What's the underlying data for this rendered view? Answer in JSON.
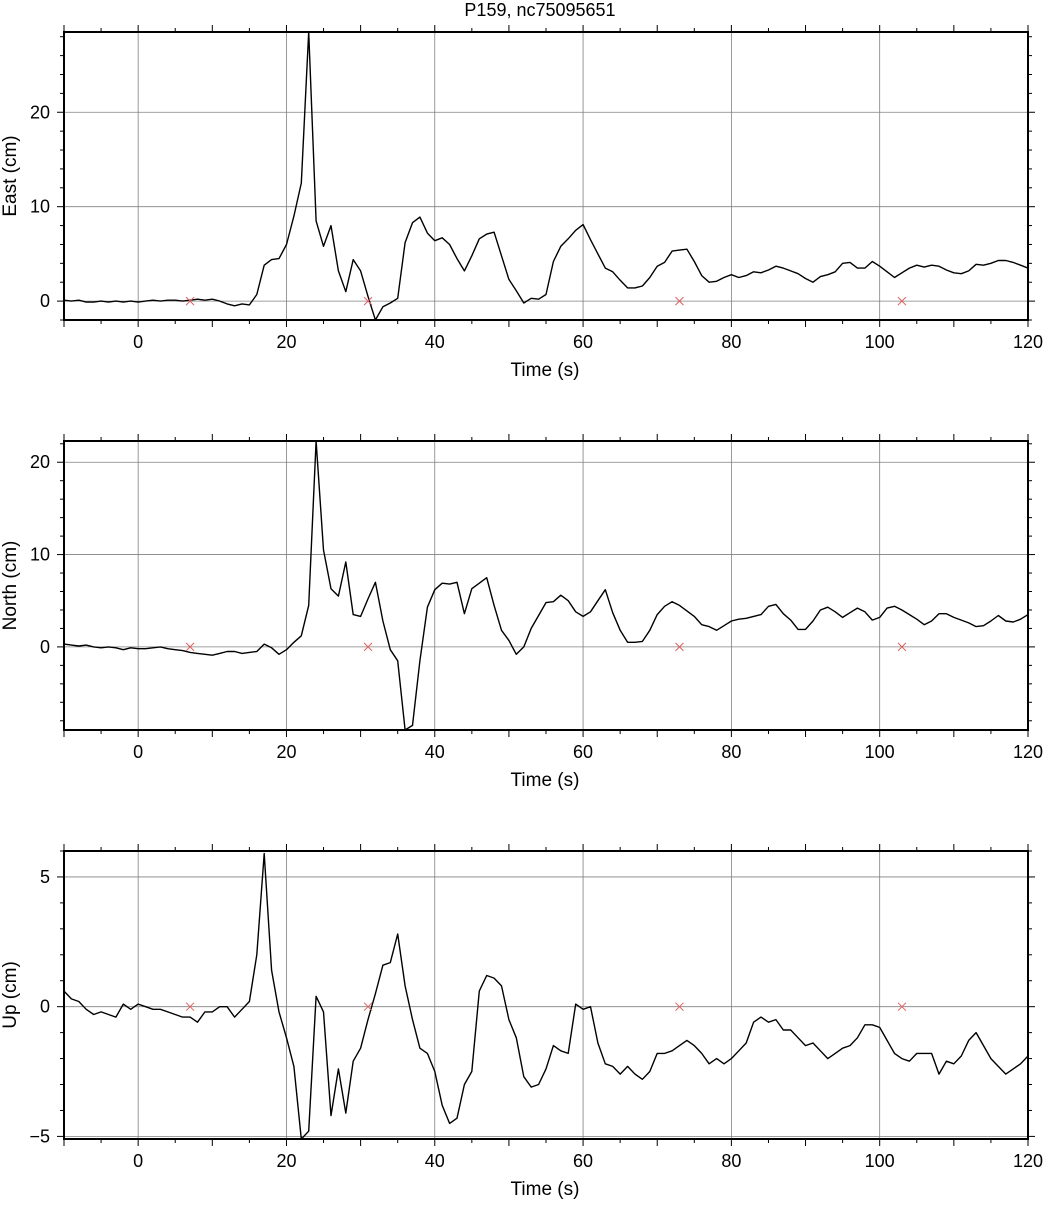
{
  "chart_data": {
    "title": "P159, nc75095651",
    "type": "line",
    "colors": {
      "trace": "#000000",
      "marker": "#e06060",
      "grid": "#808080"
    },
    "panels": [
      {
        "id": "east",
        "ylabel": "East (cm)",
        "xlabel": "Time (s)",
        "xlim": [
          -10,
          120
        ],
        "ylim": [
          -2,
          28.5
        ],
        "xticks": [
          0,
          20,
          40,
          60,
          80,
          100,
          120
        ],
        "xtick_labels": [
          "0",
          "20",
          "40",
          "60",
          "80",
          "100",
          "120"
        ],
        "yticks": [
          0,
          10,
          20
        ],
        "ytick_labels": [
          "0",
          "10",
          "20"
        ],
        "x": [
          -10,
          -9,
          -8,
          -7,
          -6,
          -5,
          -4,
          -3,
          -2,
          -1,
          0,
          1,
          2,
          3,
          4,
          5,
          6,
          7,
          8,
          9,
          10,
          11,
          12,
          13,
          14,
          15,
          16,
          17,
          18,
          19,
          20,
          21,
          22,
          23,
          24,
          25,
          26,
          27,
          28,
          29,
          30,
          31,
          32,
          33,
          34,
          35,
          36,
          37,
          38,
          39,
          40,
          41,
          42,
          43,
          44,
          45,
          46,
          47,
          48,
          49,
          50,
          51,
          52,
          53,
          54,
          55,
          56,
          57,
          58,
          59,
          60,
          61,
          62,
          63,
          64,
          65,
          66,
          67,
          68,
          69,
          70,
          71,
          72,
          73,
          74,
          75,
          76,
          77,
          78,
          79,
          80,
          81,
          82,
          83,
          84,
          85,
          86,
          87,
          88,
          89,
          90,
          91,
          92,
          93,
          94,
          95,
          96,
          97,
          98,
          99,
          100,
          101,
          102,
          103,
          104,
          105,
          106,
          107,
          108,
          109,
          110,
          111,
          112,
          113,
          114,
          115,
          116,
          117,
          118,
          119,
          120
        ],
        "y": [
          0.1,
          0,
          0.1,
          -0.1,
          -0.1,
          0,
          -0.1,
          0,
          -0.1,
          0,
          -0.1,
          0,
          0.1,
          0,
          0.1,
          0.1,
          0,
          0.1,
          0.2,
          0.1,
          0.2,
          0,
          -0.3,
          -0.5,
          -0.3,
          -0.4,
          0.7,
          3.8,
          4.4,
          4.5,
          6,
          9,
          12.5,
          28.5,
          8.5,
          5.8,
          8,
          3.2,
          1,
          4.4,
          3.2,
          0.5,
          -2,
          -0.6,
          -0.2,
          0.3,
          6.2,
          8.3,
          8.9,
          7.2,
          6.4,
          6.7,
          6,
          4.5,
          3.2,
          4.8,
          6.6,
          7.1,
          7.3,
          4.8,
          2.3,
          1.1,
          -0.2,
          0.3,
          0.2,
          0.7,
          4.2,
          5.8,
          6.6,
          7.5,
          8.1,
          6.5,
          5,
          3.5,
          3.1,
          2.2,
          1.4,
          1.4,
          1.6,
          2.5,
          3.7,
          4.1,
          5.3,
          5.4,
          5.5,
          4.2,
          2.7,
          2,
          2.1,
          2.5,
          2.8,
          2.5,
          2.7,
          3.1,
          3,
          3.3,
          3.7,
          3.5,
          3.2,
          2.9,
          2.4,
          2,
          2.6,
          2.8,
          3.1,
          4,
          4.1,
          3.5,
          3.5,
          4.2,
          3.7,
          3.1,
          2.5,
          3,
          3.5,
          3.8,
          3.6,
          3.8,
          3.7,
          3.3,
          3,
          2.9,
          3.2,
          3.9,
          3.8,
          4,
          4.3,
          4.3,
          4.1,
          3.8,
          3.5
        ],
        "markers_x": [
          7,
          31,
          73,
          103
        ],
        "markers_y": [
          0,
          0,
          0,
          0
        ]
      },
      {
        "id": "north",
        "ylabel": "North (cm)",
        "xlabel": "Time (s)",
        "xlim": [
          -10,
          120
        ],
        "ylim": [
          -9,
          22.3
        ],
        "xticks": [
          0,
          20,
          40,
          60,
          80,
          100,
          120
        ],
        "xtick_labels": [
          "0",
          "20",
          "40",
          "60",
          "80",
          "100",
          "120"
        ],
        "yticks": [
          0,
          10,
          20
        ],
        "ytick_labels": [
          "0",
          "10",
          "20"
        ],
        "x": [
          -10,
          -9,
          -8,
          -7,
          -6,
          -5,
          -4,
          -3,
          -2,
          -1,
          0,
          1,
          2,
          3,
          4,
          5,
          6,
          7,
          8,
          9,
          10,
          11,
          12,
          13,
          14,
          15,
          16,
          17,
          18,
          19,
          20,
          21,
          22,
          23,
          24,
          25,
          26,
          27,
          28,
          29,
          30,
          31,
          32,
          33,
          34,
          35,
          36,
          37,
          38,
          39,
          40,
          41,
          42,
          43,
          44,
          45,
          46,
          47,
          48,
          49,
          50,
          51,
          52,
          53,
          54,
          55,
          56,
          57,
          58,
          59,
          60,
          61,
          62,
          63,
          64,
          65,
          66,
          67,
          68,
          69,
          70,
          71,
          72,
          73,
          74,
          75,
          76,
          77,
          78,
          79,
          80,
          81,
          82,
          83,
          84,
          85,
          86,
          87,
          88,
          89,
          90,
          91,
          92,
          93,
          94,
          95,
          96,
          97,
          98,
          99,
          100,
          101,
          102,
          103,
          104,
          105,
          106,
          107,
          108,
          109,
          110,
          111,
          112,
          113,
          114,
          115,
          116,
          117,
          118,
          119,
          120
        ],
        "y": [
          0.3,
          0.2,
          0.1,
          0.2,
          0,
          -0.1,
          0,
          -0.1,
          -0.3,
          -0.1,
          -0.2,
          -0.2,
          -0.1,
          0,
          -0.2,
          -0.3,
          -0.4,
          -0.6,
          -0.7,
          -0.8,
          -0.9,
          -0.7,
          -0.5,
          -0.5,
          -0.7,
          -0.6,
          -0.5,
          0.3,
          -0.1,
          -0.8,
          -0.3,
          0.5,
          1.2,
          4.5,
          22.3,
          10.5,
          6.3,
          5.5,
          9.2,
          3.5,
          3.3,
          5.2,
          7,
          2.8,
          -0.3,
          -1.5,
          -9,
          -8.5,
          -1.5,
          4.3,
          6.2,
          6.9,
          6.8,
          7,
          3.6,
          6.3,
          6.9,
          7.5,
          4.5,
          1.8,
          0.7,
          -0.8,
          0,
          2,
          3.4,
          4.8,
          4.9,
          5.6,
          5,
          3.8,
          3.3,
          3.8,
          5,
          6.2,
          3.7,
          1.8,
          0.5,
          0.5,
          0.6,
          1.8,
          3.5,
          4.4,
          4.9,
          4.5,
          3.9,
          3.3,
          2.4,
          2.2,
          1.8,
          2.3,
          2.8,
          3,
          3.1,
          3.3,
          3.5,
          4.4,
          4.6,
          3.6,
          2.9,
          1.9,
          1.9,
          2.8,
          4,
          4.3,
          3.8,
          3.2,
          3.7,
          4.2,
          3.8,
          2.9,
          3.2,
          4.2,
          4.4,
          4,
          3.5,
          3,
          2.4,
          2.8,
          3.6,
          3.6,
          3.2,
          2.9,
          2.6,
          2.2,
          2.3,
          2.8,
          3.4,
          2.8,
          2.7,
          3,
          3.5
        ],
        "markers_x": [
          7,
          31,
          73,
          103
        ],
        "markers_y": [
          0,
          0,
          0,
          0
        ]
      },
      {
        "id": "up",
        "ylabel": "Up (cm)",
        "xlabel": "Time (s)",
        "xlim": [
          -10,
          120
        ],
        "ylim": [
          -5.1,
          6
        ],
        "xticks": [
          0,
          20,
          40,
          60,
          80,
          100,
          120
        ],
        "xtick_labels": [
          "0",
          "20",
          "40",
          "60",
          "80",
          "100",
          "120"
        ],
        "yticks": [
          -5,
          0,
          5
        ],
        "ytick_labels": [
          "−5",
          "0",
          "5"
        ],
        "x": [
          -10,
          -9,
          -8,
          -7,
          -6,
          -5,
          -4,
          -3,
          -2,
          -1,
          0,
          1,
          2,
          3,
          4,
          5,
          6,
          7,
          8,
          9,
          10,
          11,
          12,
          13,
          14,
          15,
          16,
          17,
          18,
          19,
          20,
          21,
          22,
          23,
          24,
          25,
          26,
          27,
          28,
          29,
          30,
          31,
          32,
          33,
          34,
          35,
          36,
          37,
          38,
          39,
          40,
          41,
          42,
          43,
          44,
          45,
          46,
          47,
          48,
          49,
          50,
          51,
          52,
          53,
          54,
          55,
          56,
          57,
          58,
          59,
          60,
          61,
          62,
          63,
          64,
          65,
          66,
          67,
          68,
          69,
          70,
          71,
          72,
          73,
          74,
          75,
          76,
          77,
          78,
          79,
          80,
          81,
          82,
          83,
          84,
          85,
          86,
          87,
          88,
          89,
          90,
          91,
          92,
          93,
          94,
          95,
          96,
          97,
          98,
          99,
          100,
          101,
          102,
          103,
          104,
          105,
          106,
          107,
          108,
          109,
          110,
          111,
          112,
          113,
          114,
          115,
          116,
          117,
          118,
          119,
          120
        ],
        "y": [
          0.6,
          0.3,
          0.2,
          -0.1,
          -0.3,
          -0.2,
          -0.3,
          -0.4,
          0.1,
          -0.1,
          0.1,
          0,
          -0.1,
          -0.1,
          -0.2,
          -0.3,
          -0.4,
          -0.4,
          -0.6,
          -0.2,
          -0.2,
          0,
          0,
          -0.4,
          -0.1,
          0.2,
          2,
          5.9,
          1.4,
          -0.2,
          -1.2,
          -2.3,
          -5.1,
          -4.8,
          0.4,
          -0.2,
          -4.2,
          -2.4,
          -4.1,
          -2.1,
          -1.6,
          -0.5,
          0.5,
          1.6,
          1.7,
          2.8,
          0.8,
          -0.5,
          -1.6,
          -1.8,
          -2.5,
          -3.8,
          -4.5,
          -4.3,
          -3,
          -2.5,
          0.6,
          1.2,
          1.1,
          0.8,
          -0.5,
          -1.2,
          -2.7,
          -3.1,
          -3,
          -2.4,
          -1.5,
          -1.7,
          -1.8,
          0.1,
          -0.1,
          0,
          -1.4,
          -2.2,
          -2.3,
          -2.6,
          -2.3,
          -2.6,
          -2.8,
          -2.5,
          -1.8,
          -1.8,
          -1.7,
          -1.5,
          -1.3,
          -1.5,
          -1.8,
          -2.2,
          -2,
          -2.2,
          -2,
          -1.7,
          -1.4,
          -0.6,
          -0.4,
          -0.6,
          -0.5,
          -0.9,
          -0.9,
          -1.2,
          -1.5,
          -1.4,
          -1.7,
          -2,
          -1.8,
          -1.6,
          -1.5,
          -1.2,
          -0.7,
          -0.7,
          -0.8,
          -1.3,
          -1.8,
          -2,
          -2.1,
          -1.8,
          -1.8,
          -1.8,
          -2.6,
          -2.1,
          -2.2,
          -1.9,
          -1.3,
          -1,
          -1.5,
          -2,
          -2.3,
          -2.6,
          -2.4,
          -2.2,
          -1.9
        ],
        "markers_x": [
          7,
          31,
          73,
          103
        ],
        "markers_y": [
          0,
          0,
          0,
          0
        ]
      }
    ]
  }
}
